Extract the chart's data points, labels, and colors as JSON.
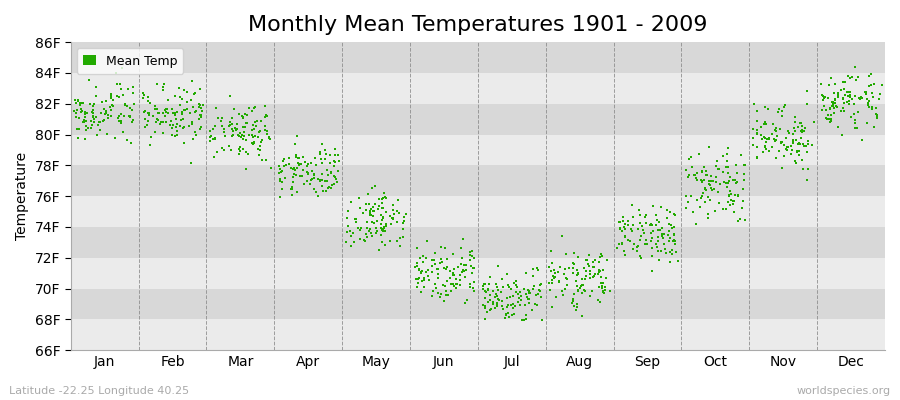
{
  "title": "Monthly Mean Temperatures 1901 - 2009",
  "ylabel": "Temperature",
  "xlabel_labels": [
    "Jan",
    "Feb",
    "Mar",
    "Apr",
    "May",
    "Jun",
    "Jul",
    "Aug",
    "Sep",
    "Oct",
    "Nov",
    "Dec"
  ],
  "ylim": [
    66,
    86
  ],
  "yticks": [
    66,
    68,
    70,
    72,
    74,
    76,
    78,
    80,
    82,
    84,
    86
  ],
  "ytick_labels": [
    "66F",
    "68F",
    "70F",
    "72F",
    "74F",
    "76F",
    "78F",
    "80F",
    "82F",
    "84F",
    "86F"
  ],
  "dot_color": "#22aa00",
  "dot_size": 3,
  "bg_light": "#ebebeb",
  "bg_dark": "#d8d8d8",
  "plot_bg": "#e8e8e8",
  "legend_label": "Mean Temp",
  "footer_left": "Latitude -22.25 Longitude 40.25",
  "footer_right": "worldspecies.org",
  "title_fontsize": 16,
  "axis_fontsize": 10,
  "monthly_means": [
    81.5,
    81.2,
    80.2,
    77.6,
    74.5,
    70.8,
    69.5,
    70.5,
    73.5,
    76.8,
    79.8,
    82.2
  ],
  "monthly_std": [
    0.9,
    0.9,
    0.9,
    0.9,
    0.9,
    0.9,
    0.9,
    0.9,
    0.9,
    1.1,
    1.1,
    0.9
  ],
  "n_years": 109
}
